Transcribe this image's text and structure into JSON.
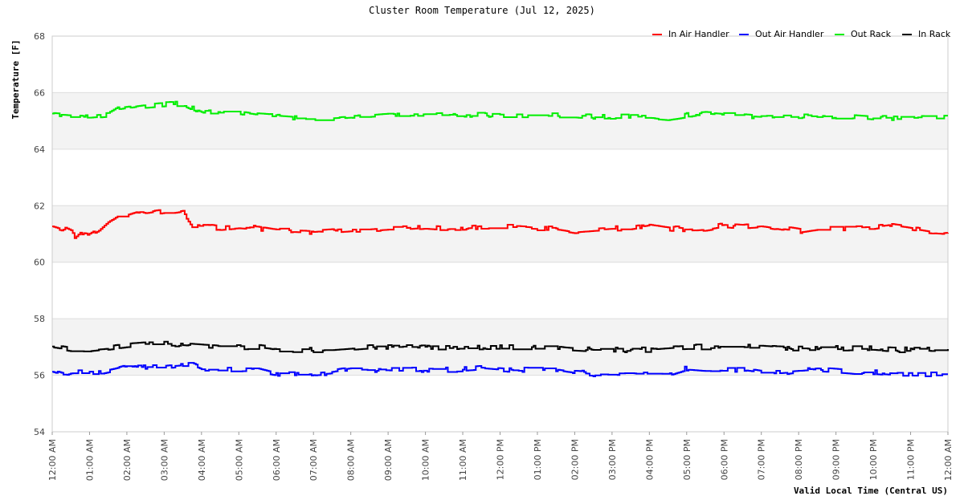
{
  "chart_data": {
    "type": "line",
    "title": "Cluster Room Temperature (Jul 12, 2025)",
    "xlabel": "Valid Local Time (Central US)",
    "ylabel": "Temperature [F]",
    "ylim": [
      54,
      68
    ],
    "yticks": [
      "54",
      "56",
      "58",
      "60",
      "62",
      "64",
      "66",
      "68"
    ],
    "xlim": [
      0,
      24
    ],
    "xticks": [
      "12:00 AM",
      "01:00 AM",
      "02:00 AM",
      "03:00 AM",
      "04:00 AM",
      "05:00 AM",
      "06:00 AM",
      "07:00 AM",
      "08:00 AM",
      "09:00 AM",
      "10:00 AM",
      "11:00 AM",
      "12:00 PM",
      "01:00 PM",
      "02:00 PM",
      "03:00 PM",
      "04:00 PM",
      "05:00 PM",
      "06:00 PM",
      "07:00 PM",
      "08:00 PM",
      "09:00 PM",
      "10:00 PM",
      "11:00 PM",
      "12:00 AM"
    ],
    "grid": "alternating horizontal bands",
    "legend_position": "top-right",
    "series": [
      {
        "name": "In Air Handler",
        "color": "#ff0000",
        "x": [
          0,
          0.25,
          0.5,
          0.6,
          0.75,
          1,
          1.25,
          1.5,
          1.75,
          2,
          2.25,
          2.5,
          2.75,
          3,
          3.25,
          3.5,
          3.6,
          3.75,
          4,
          4.5,
          5,
          5.5,
          6,
          6.5,
          7,
          7.5,
          8,
          8.5,
          9,
          9.5,
          10,
          10.5,
          11,
          11.5,
          12,
          12.5,
          13,
          13.5,
          14,
          14.5,
          15,
          15.5,
          16,
          16.5,
          17,
          17.5,
          18,
          18.5,
          19,
          19.5,
          20,
          20.5,
          21,
          21.5,
          22,
          22.5,
          23,
          23.5,
          24
        ],
        "y": [
          61.3,
          61.2,
          61.05,
          60.85,
          61.05,
          61.0,
          61.2,
          61.5,
          61.7,
          61.7,
          61.8,
          61.7,
          61.75,
          61.8,
          61.8,
          61.85,
          61.6,
          61.3,
          61.3,
          61.2,
          61.25,
          61.2,
          61.1,
          61.1,
          61.05,
          61.1,
          61.15,
          61.15,
          61.2,
          61.2,
          61.25,
          61.2,
          61.2,
          61.25,
          61.25,
          61.25,
          61.2,
          61.2,
          61.1,
          61.15,
          61.2,
          61.2,
          61.3,
          61.2,
          61.15,
          61.2,
          61.3,
          61.25,
          61.3,
          61.2,
          61.1,
          61.2,
          61.2,
          61.2,
          61.2,
          61.3,
          61.2,
          61.1,
          61.05
        ]
      },
      {
        "name": "Out Air Handler",
        "color": "#0000ff",
        "x": [
          0,
          0.25,
          0.5,
          1,
          1.35,
          1.7,
          2,
          2.5,
          3,
          3.4,
          3.75,
          4,
          4.5,
          5,
          5.5,
          5.8,
          6,
          6.5,
          7,
          7.5,
          8,
          8.5,
          9,
          9.5,
          10,
          10.5,
          11,
          11.5,
          12,
          12.5,
          13,
          13.5,
          14,
          14.5,
          15,
          15.5,
          16,
          16.5,
          17,
          17.5,
          18,
          18.5,
          19,
          19.5,
          20,
          20.5,
          21,
          21.5,
          22,
          22.5,
          23,
          23.5,
          24
        ],
        "y": [
          56.2,
          56.1,
          56.1,
          56.1,
          56.1,
          56.2,
          56.3,
          56.3,
          56.3,
          56.35,
          56.35,
          56.2,
          56.2,
          56.2,
          56.2,
          56.1,
          56.05,
          56.05,
          56.05,
          56.1,
          56.2,
          56.2,
          56.2,
          56.2,
          56.2,
          56.2,
          56.2,
          56.25,
          56.2,
          56.2,
          56.2,
          56.2,
          56.1,
          56.05,
          56.05,
          56.05,
          56.05,
          56.05,
          56.25,
          56.2,
          56.2,
          56.2,
          56.1,
          56.1,
          56.15,
          56.2,
          56.15,
          56.1,
          56.1,
          56.05,
          56.05,
          56.05,
          56.05
        ]
      },
      {
        "name": "Out Rack",
        "color": "#00ee00",
        "x": [
          0,
          0.5,
          1,
          1.5,
          1.75,
          2,
          2.5,
          3,
          3.5,
          3.75,
          4,
          4.5,
          5,
          5.5,
          6,
          6.5,
          7,
          7.5,
          8,
          8.5,
          9,
          9.5,
          10,
          10.5,
          11,
          11.5,
          12,
          12.5,
          13,
          13.5,
          14,
          14.5,
          15,
          15.5,
          16,
          16.5,
          17,
          17.5,
          18,
          18.5,
          19,
          19.5,
          20,
          20.5,
          21,
          21.5,
          22,
          22.5,
          23,
          23.5,
          24
        ],
        "y": [
          65.2,
          65.15,
          65.15,
          65.2,
          65.4,
          65.45,
          65.55,
          65.6,
          65.6,
          65.45,
          65.3,
          65.3,
          65.3,
          65.2,
          65.15,
          65.1,
          65.1,
          65.1,
          65.15,
          65.15,
          65.2,
          65.2,
          65.2,
          65.2,
          65.2,
          65.2,
          65.2,
          65.2,
          65.2,
          65.2,
          65.2,
          65.15,
          65.15,
          65.15,
          65.15,
          65.1,
          65.2,
          65.25,
          65.2,
          65.2,
          65.15,
          65.15,
          65.15,
          65.15,
          65.15,
          65.15,
          65.1,
          65.1,
          65.1,
          65.1,
          65.1
        ]
      },
      {
        "name": "In Rack",
        "color": "#000000",
        "x": [
          0,
          0.25,
          0.5,
          1,
          1.4,
          2,
          2.5,
          3,
          3.5,
          4,
          4.5,
          5,
          5.5,
          5.8,
          6,
          6.5,
          7,
          7.5,
          8,
          8.5,
          9,
          9.5,
          10,
          10.5,
          11,
          11.5,
          12,
          12.5,
          13,
          13.5,
          14,
          14.5,
          15,
          15.5,
          16,
          16.5,
          17,
          17.5,
          18,
          18.5,
          19,
          19.5,
          20,
          20.5,
          21,
          21.5,
          22,
          22.5,
          23,
          23.5,
          24
        ],
        "y": [
          57.0,
          56.95,
          56.9,
          56.9,
          56.95,
          57.05,
          57.1,
          57.1,
          57.1,
          57.05,
          57.0,
          57.0,
          57.0,
          56.95,
          56.9,
          56.9,
          56.9,
          56.9,
          56.95,
          57.0,
          57.0,
          57.0,
          57.0,
          57.0,
          57.0,
          57.0,
          57.0,
          57.0,
          57.0,
          57.0,
          56.95,
          56.9,
          56.9,
          56.9,
          56.9,
          56.95,
          57.0,
          57.0,
          57.0,
          57.0,
          57.0,
          56.95,
          56.95,
          56.95,
          56.95,
          56.95,
          56.95,
          56.9,
          56.9,
          56.9,
          56.9
        ]
      }
    ]
  }
}
